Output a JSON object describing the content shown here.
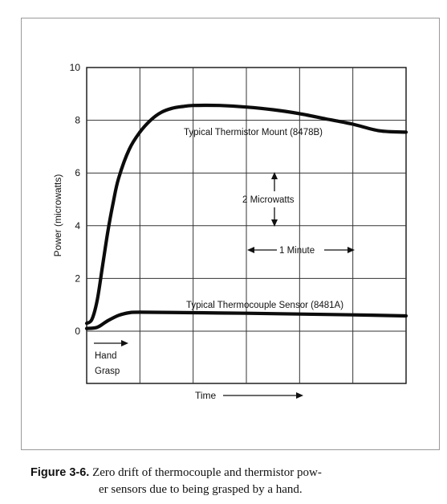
{
  "chart_data": {
    "type": "line",
    "ylabel": "Power (microwatts)",
    "xlabel": "Time",
    "ylim": [
      0,
      10
    ],
    "yticks": [
      "0",
      "2",
      "4",
      "6",
      "8",
      "10"
    ],
    "grid": true,
    "series": [
      {
        "name": "Typical Thermistor Mount (8478B)",
        "points": [
          [
            0,
            0.3
          ],
          [
            0.1,
            0.45
          ],
          [
            0.2,
            1.2
          ],
          [
            0.3,
            2.5
          ],
          [
            0.4,
            3.8
          ],
          [
            0.5,
            4.9
          ],
          [
            0.6,
            5.8
          ],
          [
            0.8,
            6.9
          ],
          [
            1.0,
            7.55
          ],
          [
            1.2,
            8.0
          ],
          [
            1.4,
            8.3
          ],
          [
            1.6,
            8.45
          ],
          [
            1.8,
            8.52
          ],
          [
            2.0,
            8.56
          ],
          [
            2.5,
            8.56
          ],
          [
            3.0,
            8.5
          ],
          [
            3.5,
            8.4
          ],
          [
            4.0,
            8.25
          ],
          [
            4.5,
            8.05
          ],
          [
            5.0,
            7.85
          ],
          [
            5.5,
            7.6
          ],
          [
            6.0,
            7.55
          ]
        ],
        "label_text": "Typical Thermistor Mount (8478B)"
      },
      {
        "name": "Typical Thermocouple Sensor (8481A)",
        "points": [
          [
            0,
            0.1
          ],
          [
            0.2,
            0.15
          ],
          [
            0.4,
            0.4
          ],
          [
            0.6,
            0.6
          ],
          [
            0.8,
            0.7
          ],
          [
            1.0,
            0.72
          ],
          [
            2.0,
            0.7
          ],
          [
            3.0,
            0.68
          ],
          [
            4.0,
            0.65
          ],
          [
            5.0,
            0.62
          ],
          [
            6.0,
            0.58
          ]
        ],
        "label_text": "Typical Thermocouple Sensor (8481A)"
      }
    ],
    "annotations": {
      "vertical_scale": "2 Microwatts",
      "horizontal_scale": "1 Minute",
      "hand_grasp_line1": "Hand",
      "hand_grasp_line2": "Grasp"
    }
  },
  "caption": {
    "label": "Figure 3-6.",
    "line1": "Zero drift of thermocouple and thermistor pow-",
    "line2": "er sensors due to being grasped by a hand."
  }
}
